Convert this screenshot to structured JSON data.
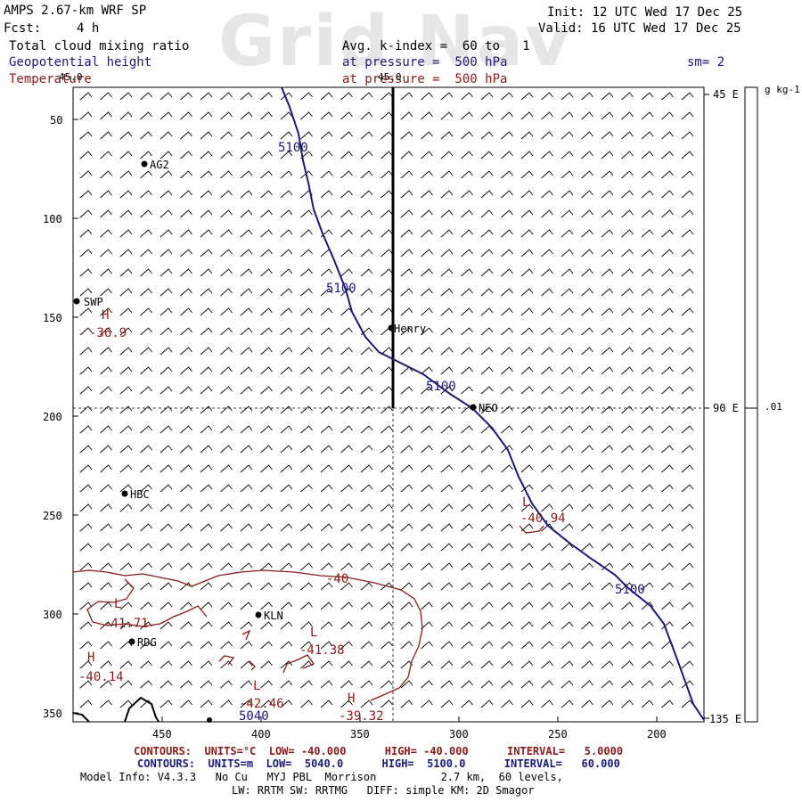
{
  "header": {
    "model": "AMPS 2.67-km WRF SP",
    "fcst_label": "Fcst:",
    "fcst_value": "4 h",
    "init": "Init: 12 UTC Wed 17 Dec 25",
    "valid": "Valid: 16 UTC Wed 17 Dec 25",
    "watermark": "Grid Nav",
    "field1": "Total cloud mixing ratio",
    "field2": "Geopotential height",
    "field3": "Temperature",
    "avg": "Avg. k-index =  60 to   1",
    "pressure1": "at pressure =  500 hPa",
    "pressure2": "at pressure =  500 hPa",
    "sm": "sm= 2"
  },
  "axes": {
    "y_ticks": [
      "50",
      "100",
      "150",
      "200",
      "250",
      "300",
      "350"
    ],
    "x_ticks": [
      "450",
      "400",
      "350",
      "300",
      "250",
      "200"
    ],
    "right_labels": [
      "45 E",
      "90 E",
      "135 E"
    ],
    "top_tick": "45.0"
  },
  "colorbar": {
    "unit": "g kg-1",
    "value": ".01"
  },
  "stations": [
    {
      "name": "AG2"
    },
    {
      "name": "SWP"
    },
    {
      "name": "Henry"
    },
    {
      "name": "NEO"
    },
    {
      "name": "HBC"
    },
    {
      "name": "KLN"
    },
    {
      "name": "RDG"
    }
  ],
  "contour_labels": {
    "height": [
      "5100",
      "5100",
      "5100",
      "5100",
      "5040"
    ],
    "temp": [
      "-40",
      "-41.71",
      "-41.38",
      "-40.14",
      "-42.46",
      "-39.32",
      "-36.9",
      "-40.94"
    ],
    "highs_lows": [
      "H",
      "L",
      "L",
      "H",
      "L",
      "H",
      "L"
    ]
  },
  "footer": {
    "red_line": "CONTOURS:  UNITS=°C  LOW= -40.000      HIGH= -40.000      INTERVAL=   5.0000",
    "blue_line": "CONTOURS:  UNITS=m  LOW=  5040.0      HIGH=  5100.0      INTERVAL=   60.000",
    "model_info": "Model Info: V4.3.3   No Cu   MYJ PBL  Morrison          2.7 km,  60 levels,",
    "model_info2": "LW: RRTM SW: RRTMG   DIFF: simple KM: 2D Smagor"
  }
}
